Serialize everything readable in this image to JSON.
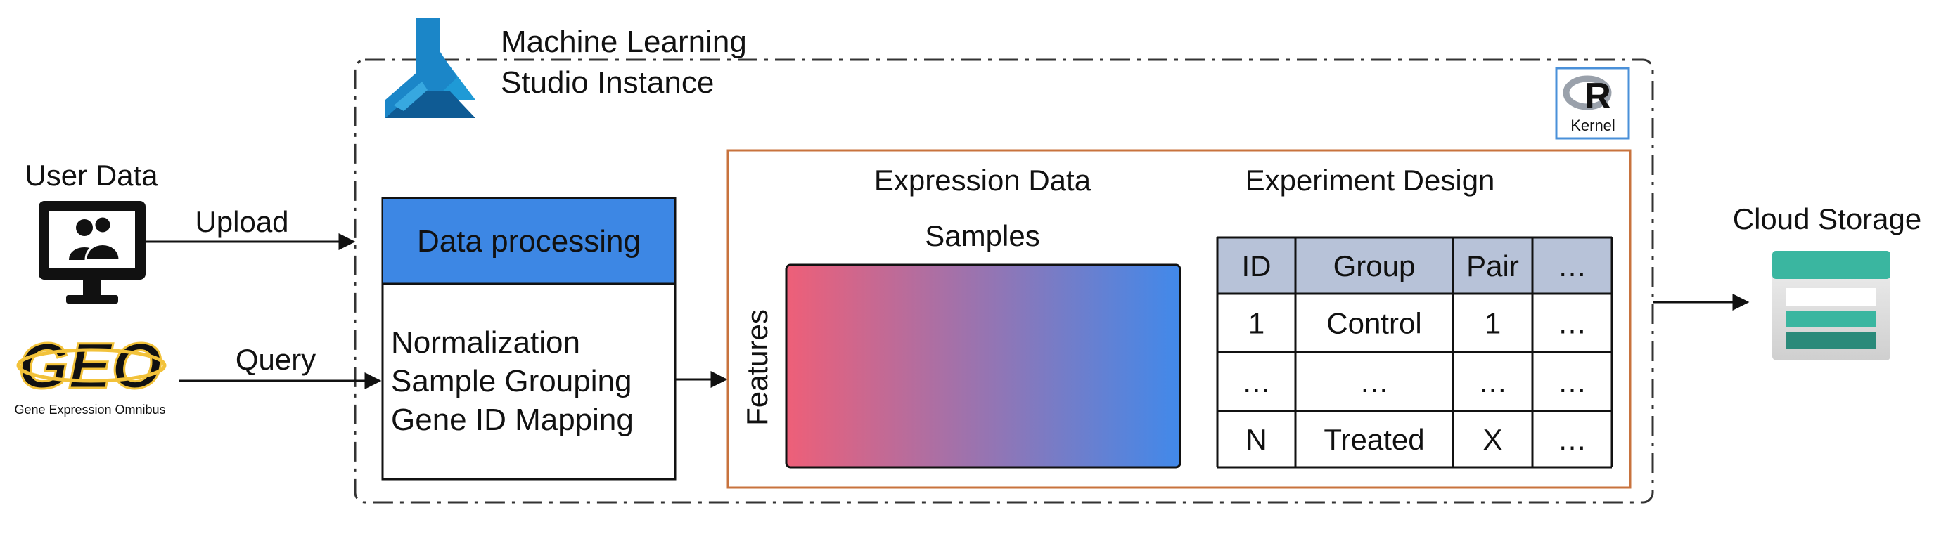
{
  "instance": {
    "title_line1": "Machine Learning",
    "title_line2": "Studio Instance"
  },
  "r_kernel": {
    "logo_letter": "R",
    "label": "Kernel"
  },
  "inputs": {
    "user_data_label": "User Data",
    "upload_label": "Upload",
    "geo_logo_text": "GEO",
    "geo_caption": "Gene Expression Omnibus",
    "query_label": "Query"
  },
  "processing": {
    "header": "Data processing",
    "steps": [
      "Normalization",
      "Sample Grouping",
      "Gene ID Mapping"
    ]
  },
  "expression": {
    "title": "Expression Data",
    "samples_label": "Samples",
    "features_label": "Features",
    "gradient_start": "#ee5f78",
    "gradient_end": "#4189ea"
  },
  "design": {
    "title": "Experiment Design",
    "headers": [
      "ID",
      "Group",
      "Pair",
      "…"
    ],
    "rows": [
      [
        "1",
        "Control",
        "1",
        "…"
      ],
      [
        "…",
        "…",
        "…",
        "…"
      ],
      [
        "N",
        "Treated",
        "X",
        "…"
      ]
    ]
  },
  "storage": {
    "label": "Cloud Storage"
  },
  "colors": {
    "processing_header": "#3d87e4",
    "table_header_bg": "#b7c2d8",
    "container_border": "#c8733e",
    "storage_teal": "#3ab6a0",
    "storage_dark": "#2a8a7a",
    "azure_light": "#1f9ad6",
    "azure_dark": "#0f5b94"
  }
}
